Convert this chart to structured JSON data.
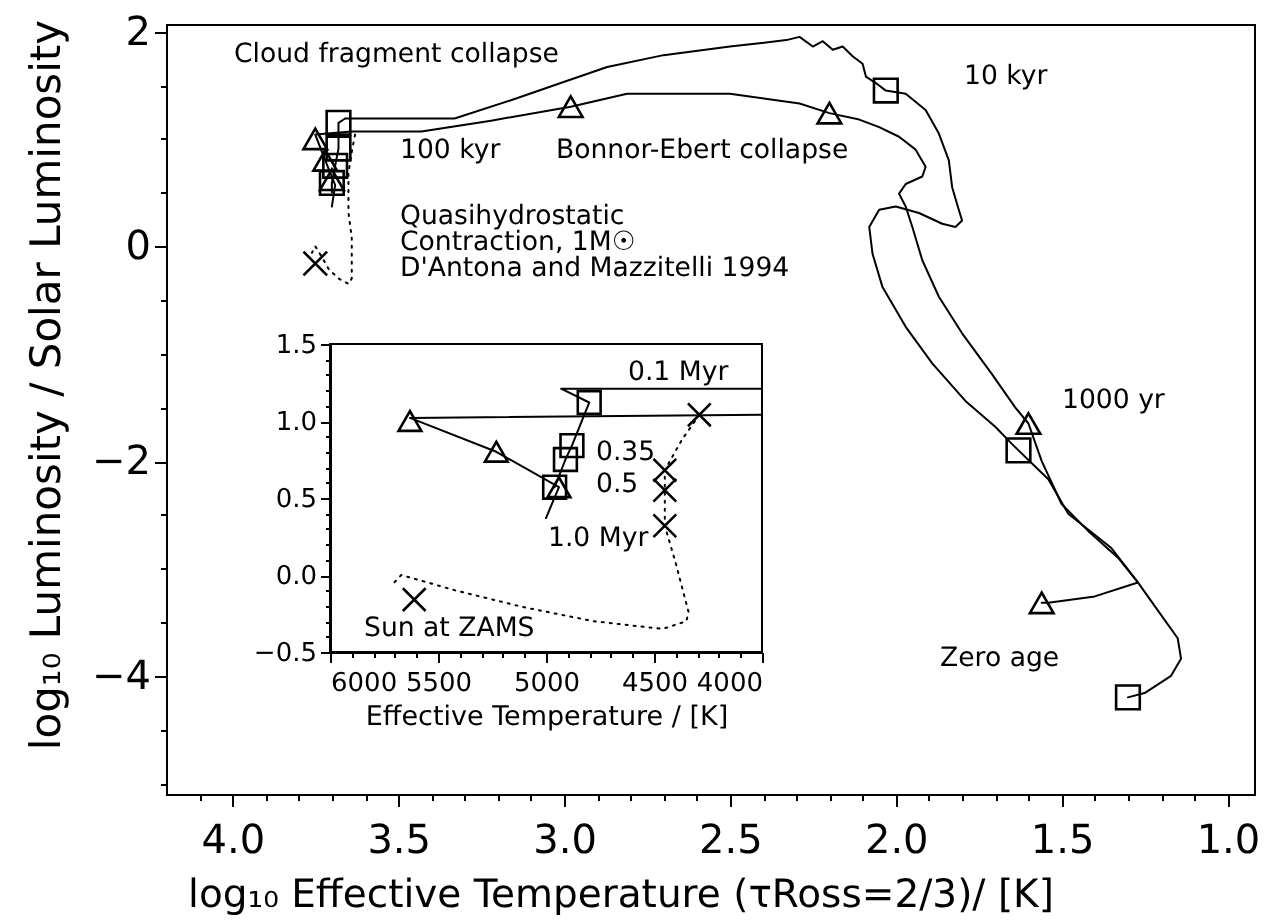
{
  "chart_data": [
    {
      "type": "line",
      "xlabel": "log₁₀ Effective Temperature (τRoss=2/3)/ [K]",
      "ylabel": "log₁₀ Luminosity / Solar Luminosity",
      "grid": false,
      "xlim": [
        4.2,
        0.92
      ],
      "ylim": [
        -5.1,
        2.07
      ],
      "xticks": [
        {
          "value": 4.1,
          "label": null
        },
        {
          "value": 4,
          "label": "4.0"
        },
        {
          "value": 3.9,
          "label": null
        },
        {
          "value": 3.8,
          "label": null
        },
        {
          "value": 3.7,
          "label": null
        },
        {
          "value": 3.6,
          "label": null
        },
        3.5,
        {
          "value": 3.4,
          "label": null
        },
        {
          "value": 3.3,
          "label": null
        },
        {
          "value": 3.2,
          "label": null
        },
        {
          "value": 3.1,
          "label": null
        },
        {
          "value": 3,
          "label": "3.0"
        },
        {
          "value": 2.9,
          "label": null
        },
        {
          "value": 2.8,
          "label": null
        },
        {
          "value": 2.7,
          "label": null
        },
        {
          "value": 2.6,
          "label": null
        },
        2.5,
        {
          "value": 2.4,
          "label": null
        },
        {
          "value": 2.3,
          "label": null
        },
        {
          "value": 2.2,
          "label": null
        },
        {
          "value": 2.1,
          "label": null
        },
        {
          "value": 2,
          "label": "2.0"
        },
        {
          "value": 1.9,
          "label": null
        },
        {
          "value": 1.8,
          "label": null
        },
        {
          "value": 1.7,
          "label": null
        },
        {
          "value": 1.6,
          "label": null
        },
        1.5,
        {
          "value": 1.4,
          "label": null
        },
        {
          "value": 1.3,
          "label": null
        },
        {
          "value": 1.2,
          "label": null
        },
        {
          "value": 1.1,
          "label": null
        },
        {
          "value": 1,
          "label": "1.0"
        }
      ],
      "yticks": [
        2,
        {
          "value": 1.5,
          "label": null
        },
        {
          "value": 1,
          "label": null
        },
        {
          "value": 0.5,
          "label": null
        },
        0,
        {
          "value": -0.5,
          "label": null
        },
        {
          "value": -1,
          "label": null
        },
        {
          "value": -1.5,
          "label": null
        },
        -2,
        {
          "value": -2.5,
          "label": null
        },
        {
          "value": -3,
          "label": null
        },
        {
          "value": -3.5,
          "label": null
        },
        -4,
        {
          "value": -4.5,
          "label": null
        },
        {
          "value": -5,
          "label": null
        }
      ],
      "series": [
        {
          "color": "#000000",
          "marker": "none",
          "line_style": "solid",
          "x": [
            3.7,
            3.7,
            3.69,
            3.68,
            3.68,
            3.66,
            3.33,
            3.16,
            3.01,
            2.87,
            2.7,
            2.5,
            2.33,
            2.29,
            2.25,
            2.22,
            2.19,
            2.16,
            2.13,
            2.1,
            2.09,
            2.06,
            2.03,
            1.97,
            1.91,
            1.87,
            1.84,
            1.83,
            1.81,
            1.8,
            1.82,
            1.86,
            1.93,
            2.0,
            2.05,
            2.08,
            2.07,
            2.04,
            1.97,
            1.89,
            1.79,
            1.7,
            1.65,
            1.63,
            1.54,
            1.48,
            1.35,
            1.27,
            1.21,
            1.15,
            1.14,
            1.17,
            1.25,
            1.3
          ],
          "values": [
            0.5,
            0.59,
            0.75,
            0.91,
            1.15,
            1.19,
            1.19,
            1.36,
            1.52,
            1.67,
            1.78,
            1.86,
            1.92,
            1.95,
            1.86,
            1.91,
            1.83,
            1.86,
            1.77,
            1.7,
            1.58,
            1.52,
            1.45,
            1.42,
            1.27,
            1.05,
            0.8,
            0.55,
            0.34,
            0.24,
            0.18,
            0.21,
            0.31,
            0.37,
            0.34,
            0.18,
            -0.07,
            -0.38,
            -0.75,
            -1.09,
            -1.44,
            -1.68,
            -1.84,
            -1.9,
            -2.17,
            -2.49,
            -2.81,
            -3.13,
            -3.39,
            -3.65,
            -3.84,
            -4.0,
            -4.16,
            -4.2
          ]
        },
        {
          "type": "scatter",
          "color": "#000000",
          "marker": "square",
          "x": [
            3.68,
            3.68,
            3.69,
            3.7,
            2.03,
            1.63,
            1.3
          ],
          "values": [
            1.15,
            0.91,
            0.75,
            0.59,
            1.45,
            -1.9,
            -4.2
          ]
        },
        {
          "color": "#000000",
          "marker": "none",
          "line_style": "solid",
          "x": [
            3.7,
            3.69,
            3.72,
            3.75,
            3.64,
            3.43,
            3.22,
            2.98,
            2.81,
            2.5,
            2.29,
            2.2,
            2.11,
            2.05,
            1.99,
            1.94,
            1.91,
            1.92,
            1.97,
            1.99,
            1.97,
            1.95,
            1.92,
            1.87,
            1.8,
            1.71,
            1.64,
            1.6,
            1.56,
            1.5,
            1.42,
            1.33,
            1.27,
            1.4,
            1.54,
            1.56
          ],
          "values": [
            0.37,
            0.57,
            0.8,
            1.04,
            1.07,
            1.07,
            1.17,
            1.3,
            1.42,
            1.42,
            1.33,
            1.24,
            1.18,
            1.11,
            1.02,
            0.9,
            0.74,
            0.65,
            0.58,
            0.49,
            0.37,
            0.18,
            -0.13,
            -0.47,
            -0.81,
            -1.19,
            -1.5,
            -1.65,
            -2.0,
            -2.4,
            -2.65,
            -2.9,
            -3.13,
            -3.26,
            -3.32,
            -3.32
          ]
        },
        {
          "type": "scatter",
          "color": "#000000",
          "marker": "triangle",
          "x": [
            3.75,
            3.72,
            3.7,
            2.98,
            2.2,
            1.6,
            1.56
          ],
          "values": [
            1.0,
            0.8,
            0.62,
            1.3,
            1.24,
            -1.65,
            -3.32
          ]
        },
        {
          "color": "#000000",
          "marker": "none",
          "line_style": "dotted",
          "x": [
            3.63,
            3.64,
            3.65,
            3.65,
            3.65,
            3.64,
            3.64,
            3.64,
            3.65,
            3.68,
            3.71,
            3.73,
            3.75,
            3.76
          ],
          "values": [
            1.04,
            0.88,
            0.68,
            0.55,
            0.32,
            0.08,
            -0.24,
            -0.3,
            -0.35,
            -0.3,
            -0.21,
            -0.1,
            0.0,
            -0.06
          ]
        },
        {
          "type": "scatter",
          "color": "#000000",
          "marker": "cross",
          "x": [
            3.75
          ],
          "values": [
            -0.16
          ]
        }
      ],
      "annotations": [
        "Cloud fragment collapse",
        "100 kyr",
        "Bonnor-Ebert collapse",
        "10 kyr",
        "Quasihydrostatic",
        "Contraction, 1M☉",
        "D'Antona and Mazzitelli 1994",
        "1000 yr",
        "Zero age"
      ]
    },
    {
      "type": "line",
      "xlabel": "Effective Temperature / [K]",
      "grid": false,
      "xlim": [
        6000,
        4000
      ],
      "ylim": [
        -0.5,
        1.5
      ],
      "xticks": [
        6000,
        {
          "value": 5900,
          "label": null
        },
        {
          "value": 5800,
          "label": null
        },
        {
          "value": 5700,
          "label": null
        },
        {
          "value": 5600,
          "label": null
        },
        5500,
        {
          "value": 5400,
          "label": null
        },
        {
          "value": 5300,
          "label": null
        },
        {
          "value": 5200,
          "label": null
        },
        {
          "value": 5100,
          "label": null
        },
        5000,
        {
          "value": 4900,
          "label": null
        },
        {
          "value": 4800,
          "label": null
        },
        {
          "value": 4700,
          "label": null
        },
        {
          "value": 4600,
          "label": null
        },
        4500,
        {
          "value": 4400,
          "label": null
        },
        {
          "value": 4300,
          "label": null
        },
        {
          "value": 4200,
          "label": null
        },
        {
          "value": 4100,
          "label": null
        },
        4000
      ],
      "yticks": [
        -0.5,
        {
          "value": -0.4,
          "label": null
        },
        {
          "value": -0.3,
          "label": null
        },
        {
          "value": -0.2,
          "label": null
        },
        {
          "value": -0.1,
          "label": null
        },
        {
          "value": 0,
          "label": "0.0"
        },
        {
          "value": 0.1,
          "label": null
        },
        {
          "value": 0.2,
          "label": null
        },
        {
          "value": 0.3,
          "label": null
        },
        {
          "value": 0.4,
          "label": null
        },
        0.5,
        {
          "value": 0.6,
          "label": null
        },
        {
          "value": 0.7,
          "label": null
        },
        {
          "value": 0.8,
          "label": null
        },
        {
          "value": 0.9,
          "label": null
        },
        {
          "value": 1,
          "label": "1.0"
        },
        {
          "value": 1.1,
          "label": null
        },
        {
          "value": 1.2,
          "label": null
        },
        {
          "value": 1.3,
          "label": null
        },
        {
          "value": 1.4,
          "label": null
        },
        1.5
      ],
      "series": [
        {
          "color": "#000000",
          "marker": "none",
          "line_style": "solid",
          "x": [
            4000,
            4930,
            4800,
            4880,
            4910,
            4960
          ],
          "values": [
            1.21,
            1.21,
            1.12,
            0.84,
            0.75,
            0.57
          ]
        },
        {
          "type": "scatter",
          "color": "#000000",
          "marker": "square",
          "x": [
            4800,
            4880,
            4910,
            4960
          ],
          "values": [
            1.12,
            0.84,
            0.75,
            0.57
          ]
        },
        {
          "color": "#000000",
          "marker": "none",
          "line_style": "solid",
          "x": [
            4000,
            5630,
            5230,
            4940,
            5000
          ],
          "values": [
            1.04,
            1.02,
            0.8,
            0.57,
            0.37
          ]
        },
        {
          "type": "scatter",
          "color": "#000000",
          "marker": "triangle",
          "x": [
            5630,
            5230,
            4940
          ],
          "values": [
            1.0,
            0.8,
            0.57
          ]
        },
        {
          "color": "#000000",
          "marker": "none",
          "line_style": "dotted",
          "x": [
            4290,
            4370,
            4450,
            4450,
            4450,
            4400,
            4340,
            4350,
            4460,
            4780,
            5100,
            5420,
            5670,
            5710
          ],
          "values": [
            1.04,
            0.88,
            0.68,
            0.55,
            0.32,
            0.08,
            -0.24,
            -0.3,
            -0.35,
            -0.3,
            -0.21,
            -0.1,
            0.0,
            -0.06
          ]
        },
        {
          "type": "scatter",
          "color": "#000000",
          "marker": "cross",
          "x": [
            4290,
            4450,
            4450,
            4450,
            5610
          ],
          "values": [
            1.04,
            0.68,
            0.55,
            0.32,
            -0.16
          ]
        }
      ],
      "annotations": [
        "0.1 Myr",
        "0.35",
        "0.5",
        "1.0 Myr",
        "Sun at ZAMS"
      ]
    }
  ]
}
